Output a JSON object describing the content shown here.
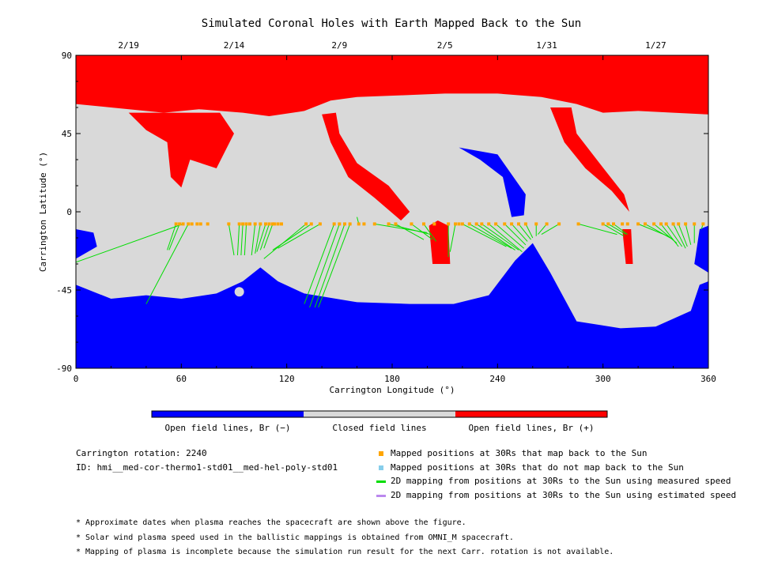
{
  "title": "Simulated Coronal Holes with Earth Mapped Back to the Sun",
  "colors": {
    "open_negative": "#0000ff",
    "closed": "#d9d9d9",
    "open_positive": "#ff0000",
    "mapped_point": "#ffa500",
    "unmapped_point": "#87ceeb",
    "measured_line": "#00dd00",
    "estimated_line": "#bb88ee"
  },
  "chart_data": {
    "type": "heatmap",
    "title": "Simulated Coronal Holes with Earth Mapped Back to the Sun",
    "xlabel": "Carrington Longitude (°)",
    "ylabel": "Carrington Latitude (°)",
    "xlim": [
      0,
      360
    ],
    "ylim": [
      -90,
      90
    ],
    "xticks": [
      0,
      60,
      120,
      180,
      240,
      300,
      360
    ],
    "yticks": [
      -90,
      -45,
      0,
      45,
      90
    ],
    "top_axis": {
      "labels": [
        "2/19",
        "2/14",
        "2/9",
        "2/5",
        "1/31",
        "1/27"
      ],
      "longitudes": [
        30,
        90,
        150,
        210,
        268,
        330
      ]
    },
    "colorbar": {
      "labels": [
        "Open field lines, Br (−)",
        "Closed field lines",
        "Open field lines, Br (+)"
      ]
    },
    "north_polar_hole_boundary": [
      [
        0,
        62
      ],
      [
        20,
        60
      ],
      [
        50,
        57
      ],
      [
        70,
        59
      ],
      [
        95,
        57
      ],
      [
        110,
        55
      ],
      [
        130,
        58
      ],
      [
        145,
        64
      ],
      [
        160,
        66
      ],
      [
        185,
        67
      ],
      [
        210,
        68
      ],
      [
        240,
        68
      ],
      [
        265,
        66
      ],
      [
        285,
        62
      ],
      [
        300,
        57
      ],
      [
        320,
        58
      ],
      [
        340,
        57
      ],
      [
        360,
        56
      ]
    ],
    "south_polar_hole_boundary": [
      [
        0,
        -42
      ],
      [
        20,
        -50
      ],
      [
        40,
        -48
      ],
      [
        60,
        -50
      ],
      [
        80,
        -47
      ],
      [
        95,
        -40
      ],
      [
        105,
        -32
      ],
      [
        115,
        -40
      ],
      [
        130,
        -47
      ],
      [
        160,
        -52
      ],
      [
        190,
        -53
      ],
      [
        215,
        -53
      ],
      [
        235,
        -48
      ],
      [
        250,
        -28
      ],
      [
        260,
        -18
      ],
      [
        270,
        -35
      ],
      [
        285,
        -63
      ],
      [
        310,
        -67
      ],
      [
        330,
        -66
      ],
      [
        350,
        -57
      ],
      [
        355,
        -42
      ],
      [
        360,
        -40
      ]
    ],
    "positive_extensions": [
      [
        [
          30,
          57
        ],
        [
          40,
          47
        ],
        [
          52,
          40
        ],
        [
          54,
          20
        ],
        [
          60,
          14
        ],
        [
          65,
          30
        ],
        [
          80,
          25
        ],
        [
          90,
          45
        ],
        [
          82,
          57
        ]
      ],
      [
        [
          140,
          56
        ],
        [
          145,
          40
        ],
        [
          155,
          20
        ],
        [
          170,
          8
        ],
        [
          185,
          -5
        ],
        [
          190,
          0
        ],
        [
          178,
          15
        ],
        [
          160,
          28
        ],
        [
          150,
          45
        ],
        [
          148,
          57
        ]
      ],
      [
        [
          270,
          60
        ],
        [
          278,
          40
        ],
        [
          290,
          25
        ],
        [
          305,
          12
        ],
        [
          315,
          0
        ],
        [
          312,
          10
        ],
        [
          298,
          28
        ],
        [
          285,
          45
        ],
        [
          282,
          60
        ]
      ],
      [
        [
          201,
          -8
        ],
        [
          203,
          -30
        ],
        [
          213,
          -30
        ],
        [
          212,
          -8
        ],
        [
          206,
          -5
        ]
      ],
      [
        [
          311,
          -10
        ],
        [
          313,
          -30
        ],
        [
          317,
          -30
        ],
        [
          316,
          -10
        ]
      ]
    ],
    "negative_extensions": [
      [
        [
          218,
          37
        ],
        [
          240,
          33
        ],
        [
          256,
          10
        ],
        [
          255,
          -2
        ],
        [
          248,
          -3
        ],
        [
          243,
          20
        ],
        [
          230,
          30
        ]
      ],
      [
        [
          0,
          -10
        ],
        [
          10,
          -12
        ],
        [
          12,
          -20
        ],
        [
          0,
          -27
        ]
      ],
      [
        [
          355,
          -10
        ],
        [
          360,
          -8
        ],
        [
          360,
          -35
        ],
        [
          352,
          -30
        ]
      ]
    ],
    "mapped_positions_lat": -7,
    "mapped_positions_lon": [
      57,
      59,
      61,
      64,
      66,
      69,
      71,
      75,
      87,
      93,
      95,
      97,
      99,
      102,
      105,
      108,
      110,
      112,
      113,
      115,
      117,
      131,
      134,
      139,
      147,
      150,
      153,
      156,
      161,
      164,
      170,
      178,
      182,
      191,
      198,
      204,
      212,
      216,
      218,
      220,
      224,
      228,
      231,
      235,
      239,
      244,
      248,
      252,
      256,
      262,
      268,
      275,
      286,
      300,
      303,
      306,
      311,
      314,
      320,
      324,
      329,
      333,
      336,
      340,
      343,
      347,
      352,
      357
    ],
    "field_line_endpoints": [
      [
        [
          57,
          -7
        ],
        [
          52,
          -22
        ]
      ],
      [
        [
          59,
          -7
        ],
        [
          53,
          -22
        ]
      ],
      [
        [
          61,
          -7
        ],
        [
          0,
          -29
        ]
      ],
      [
        [
          64,
          -7
        ],
        [
          40,
          -53
        ]
      ],
      [
        [
          87,
          -7
        ],
        [
          90,
          -25
        ]
      ],
      [
        [
          93,
          -7
        ],
        [
          92,
          -25
        ]
      ],
      [
        [
          95,
          -7
        ],
        [
          94,
          -25
        ]
      ],
      [
        [
          97,
          -7
        ],
        [
          96,
          -25
        ]
      ],
      [
        [
          102,
          -7
        ],
        [
          100,
          -25
        ]
      ],
      [
        [
          105,
          -7
        ],
        [
          102,
          -24
        ]
      ],
      [
        [
          108,
          -7
        ],
        [
          103,
          -23
        ]
      ],
      [
        [
          110,
          -7
        ],
        [
          105,
          -22
        ]
      ],
      [
        [
          112,
          -7
        ],
        [
          107,
          -21
        ]
      ],
      [
        [
          131,
          -7
        ],
        [
          107,
          -27
        ]
      ],
      [
        [
          134,
          -7
        ],
        [
          112,
          -22
        ]
      ],
      [
        [
          139,
          -7
        ],
        [
          115,
          -21
        ]
      ],
      [
        [
          147,
          -7
        ],
        [
          130,
          -53
        ]
      ],
      [
        [
          150,
          -7
        ],
        [
          133,
          -55
        ]
      ],
      [
        [
          153,
          -7
        ],
        [
          136,
          -55
        ]
      ],
      [
        [
          156,
          -7
        ],
        [
          138,
          -55
        ]
      ],
      [
        [
          161,
          -7
        ],
        [
          160,
          -3
        ]
      ],
      [
        [
          170,
          -7
        ],
        [
          200,
          -12
        ]
      ],
      [
        [
          178,
          -7
        ],
        [
          202,
          -13
        ]
      ],
      [
        [
          182,
          -7
        ],
        [
          198,
          -16
        ]
      ],
      [
        [
          191,
          -7
        ],
        [
          203,
          -16
        ]
      ],
      [
        [
          198,
          -7
        ],
        [
          205,
          -17
        ]
      ],
      [
        [
          212,
          -7
        ],
        [
          212,
          -26
        ]
      ],
      [
        [
          216,
          -7
        ],
        [
          213,
          -23
        ]
      ],
      [
        [
          220,
          -7
        ],
        [
          245,
          -20
        ]
      ],
      [
        [
          224,
          -7
        ],
        [
          248,
          -21
        ]
      ],
      [
        [
          228,
          -7
        ],
        [
          250,
          -22
        ]
      ],
      [
        [
          231,
          -7
        ],
        [
          252,
          -22
        ]
      ],
      [
        [
          235,
          -7
        ],
        [
          254,
          -23
        ]
      ],
      [
        [
          239,
          -7
        ],
        [
          255,
          -21
        ]
      ],
      [
        [
          244,
          -7
        ],
        [
          256,
          -19
        ]
      ],
      [
        [
          248,
          -7
        ],
        [
          257,
          -17
        ]
      ],
      [
        [
          252,
          -7
        ],
        [
          259,
          -16
        ]
      ],
      [
        [
          256,
          -7
        ],
        [
          260,
          -15
        ]
      ],
      [
        [
          262,
          -7
        ],
        [
          262,
          -14
        ]
      ],
      [
        [
          268,
          -7
        ],
        [
          263,
          -13
        ]
      ],
      [
        [
          275,
          -7
        ],
        [
          265,
          -13
        ]
      ],
      [
        [
          286,
          -7
        ],
        [
          308,
          -13
        ]
      ],
      [
        [
          300,
          -7
        ],
        [
          312,
          -14
        ]
      ],
      [
        [
          303,
          -7
        ],
        [
          313,
          -13
        ]
      ],
      [
        [
          306,
          -7
        ],
        [
          314,
          -13
        ]
      ],
      [
        [
          320,
          -7
        ],
        [
          337,
          -14
        ]
      ],
      [
        [
          324,
          -7
        ],
        [
          340,
          -16
        ]
      ],
      [
        [
          329,
          -7
        ],
        [
          342,
          -18
        ]
      ],
      [
        [
          333,
          -7
        ],
        [
          343,
          -20
        ]
      ],
      [
        [
          336,
          -7
        ],
        [
          345,
          -20
        ]
      ],
      [
        [
          340,
          -7
        ],
        [
          347,
          -21
        ]
      ],
      [
        [
          343,
          -7
        ],
        [
          348,
          -20
        ]
      ],
      [
        [
          347,
          -7
        ],
        [
          350,
          -19
        ]
      ],
      [
        [
          352,
          -7
        ],
        [
          352,
          -18
        ]
      ],
      [
        [
          357,
          -7
        ],
        [
          356,
          -10
        ]
      ]
    ]
  },
  "colorbar_labels": {
    "negative": "Open field lines, Br (−)",
    "closed": "Closed field lines",
    "positive": "Open field lines, Br (+)"
  },
  "info": {
    "rotation": "Carrington rotation: 2240",
    "id": "ID: hmi__med-cor-thermo1-std01__med-hel-poly-std01"
  },
  "legend": [
    {
      "label": "Mapped positions at 30Rs that map back to the Sun",
      "kind": "square",
      "color": "#ffa500"
    },
    {
      "label": "Mapped positions at 30Rs that do not map back to the Sun",
      "kind": "square",
      "color": "#87ceeb"
    },
    {
      "label": "2D mapping from positions at 30Rs to the Sun using measured speed",
      "kind": "line",
      "color": "#00dd00"
    },
    {
      "label": "2D mapping from positions at 30Rs to the Sun using estimated speed",
      "kind": "line",
      "color": "#bb88ee"
    }
  ],
  "notes": [
    "* Approximate dates when plasma reaches the spacecraft are shown above the figure.",
    "* Solar wind plasma speed used in the ballistic mappings is obtained from OMNI_M spacecraft.",
    "* Mapping of plasma is incomplete because the simulation run result for the next Carr. rotation is not available."
  ]
}
